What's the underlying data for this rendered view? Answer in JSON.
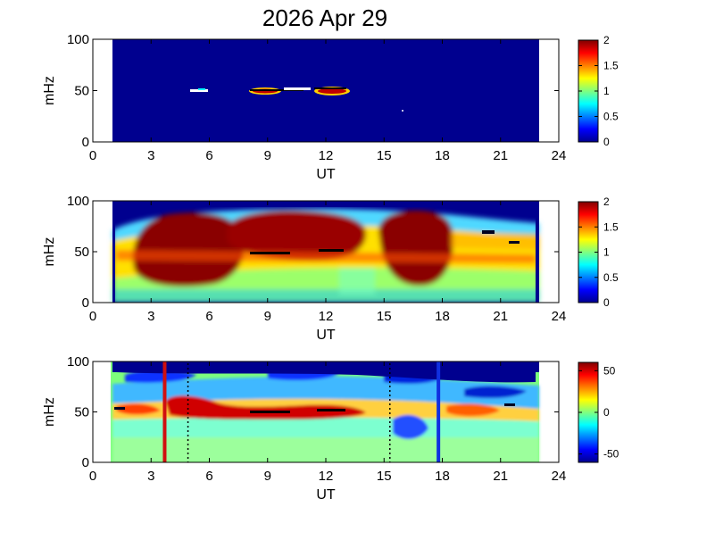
{
  "title": "2026 Apr 29",
  "chart_data": [
    {
      "type": "heatmap",
      "panel": "top",
      "xlabel": "UT",
      "ylabel": "mHz",
      "x_ticks": [
        "0",
        "3",
        "6",
        "9",
        "12",
        "15",
        "18",
        "21",
        "24"
      ],
      "y_ticks": [
        "0",
        "50",
        "100"
      ],
      "xlim": [
        0,
        24
      ],
      "ylim": [
        0,
        100
      ],
      "data_x_range": [
        1,
        23
      ],
      "colorbar": {
        "range": [
          0,
          2
        ],
        "ticks": [
          "0",
          "0.5",
          "1",
          "1.5",
          "2"
        ]
      },
      "description_values": "mostly background (0); thin features near 50 mHz around 5 UT, 8-10 UT and 11-13 UT"
    },
    {
      "type": "heatmap",
      "panel": "middle",
      "xlabel": "UT",
      "ylabel": "mHz",
      "x_ticks": [
        "0",
        "3",
        "6",
        "9",
        "12",
        "15",
        "18",
        "21",
        "24"
      ],
      "y_ticks": [
        "0",
        "50",
        "100"
      ],
      "xlim": [
        0,
        24
      ],
      "ylim": [
        0,
        100
      ],
      "data_x_range": [
        1,
        23
      ],
      "colorbar": {
        "range": [
          0,
          2
        ],
        "ticks": [
          "0",
          "0.5",
          "1",
          "1.5",
          "2"
        ]
      }
    },
    {
      "type": "heatmap",
      "panel": "bottom",
      "xlabel": "UT",
      "ylabel": "mHz",
      "x_ticks": [
        "0",
        "3",
        "6",
        "9",
        "12",
        "15",
        "18",
        "21",
        "24"
      ],
      "y_ticks": [
        "0",
        "50",
        "100"
      ],
      "xlim": [
        0,
        24
      ],
      "ylim": [
        0,
        100
      ],
      "data_x_range": [
        1,
        23
      ],
      "colorbar": {
        "range": [
          -60,
          60
        ],
        "ticks": [
          "50",
          "0",
          "-50"
        ]
      },
      "vertical_lines": [
        {
          "x": 3.7,
          "color": "#d01010",
          "style": "solid"
        },
        {
          "x": 4.9,
          "color": "#000000",
          "style": "dotted"
        },
        {
          "x": 15.3,
          "color": "#000000",
          "style": "dotted"
        },
        {
          "x": 17.8,
          "color": "#1030e0",
          "style": "solid"
        }
      ]
    }
  ],
  "colors": {
    "background_low": "#00008f",
    "axis": "#000000"
  }
}
